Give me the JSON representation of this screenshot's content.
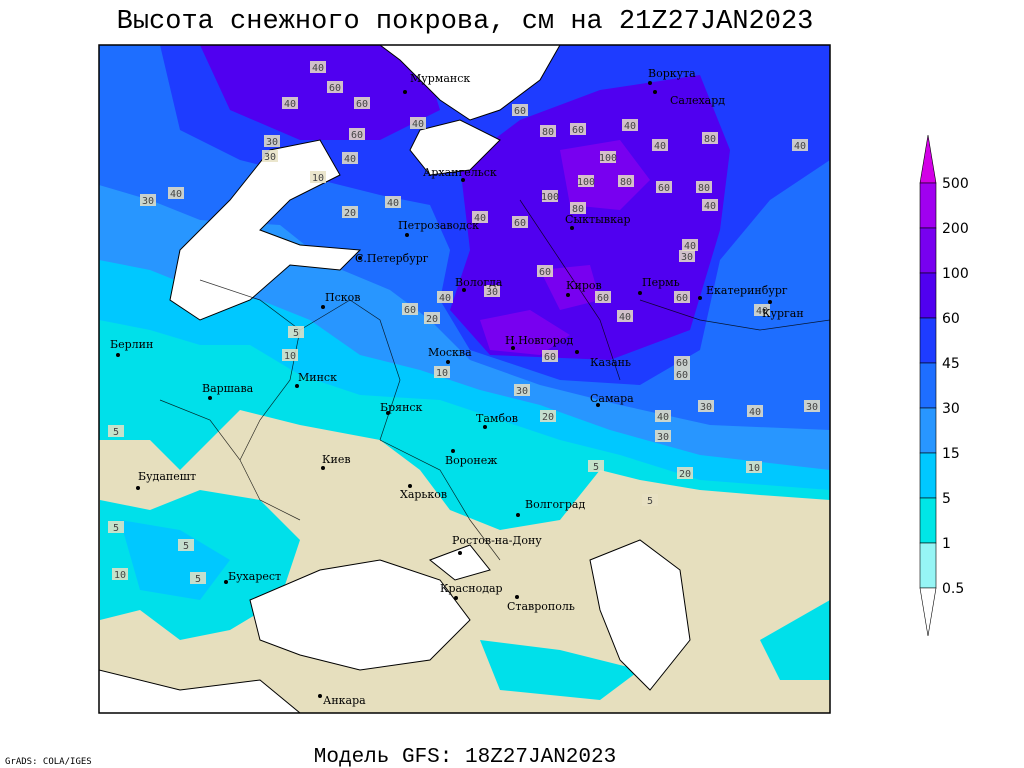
{
  "title": "Высота снежного покрова, см на 21Z27JAN2023",
  "footer": "Модель GFS: 18Z27JAN2023",
  "credit": "GrADS: COLA/IGES",
  "cities": [
    "Мурманск",
    "Воркута",
    "Салехард",
    "Архангельск",
    "Сыктывкар",
    "Петрозаводск",
    "С.Петербург",
    "Вологда",
    "Киров",
    "Пермь",
    "Екатеринбург",
    "Курган",
    "Псков",
    "Н.Новгород",
    "Казань",
    "Москва",
    "Берлин",
    "Варшава",
    "Минск",
    "Брянск",
    "Тамбов",
    "Самара",
    "Киев",
    "Воронеж",
    "Будапешт",
    "Харьков",
    "Волгоград",
    "Ростов-на-Дону",
    "Бухарест",
    "Краснодар",
    "Ставрополь",
    "Анкара"
  ],
  "contour_labels": [
    40,
    60,
    60,
    40,
    30,
    30,
    40,
    60,
    40,
    30,
    10,
    20,
    40,
    40,
    60,
    80,
    60,
    40,
    100,
    40,
    80,
    40,
    100,
    80,
    60,
    80,
    40,
    100,
    80,
    40,
    60,
    40,
    30,
    60,
    30,
    40,
    60,
    20,
    60,
    40,
    60,
    40,
    5,
    10,
    60,
    10,
    30,
    60,
    60,
    40,
    30,
    40,
    30,
    20,
    30,
    5,
    20,
    10,
    5,
    5,
    5,
    5,
    5,
    10
  ],
  "colorbar": {
    "levels": [
      500,
      200,
      100,
      60,
      45,
      30,
      15,
      5,
      1,
      0.5
    ],
    "colors": [
      "#d200e6",
      "#a000f0",
      "#7800f0",
      "#5000f0",
      "#1e3cff",
      "#1e6eff",
      "#2896ff",
      "#00c8ff",
      "#00e6e6",
      "#96f5f5",
      "#ffffff"
    ]
  }
}
